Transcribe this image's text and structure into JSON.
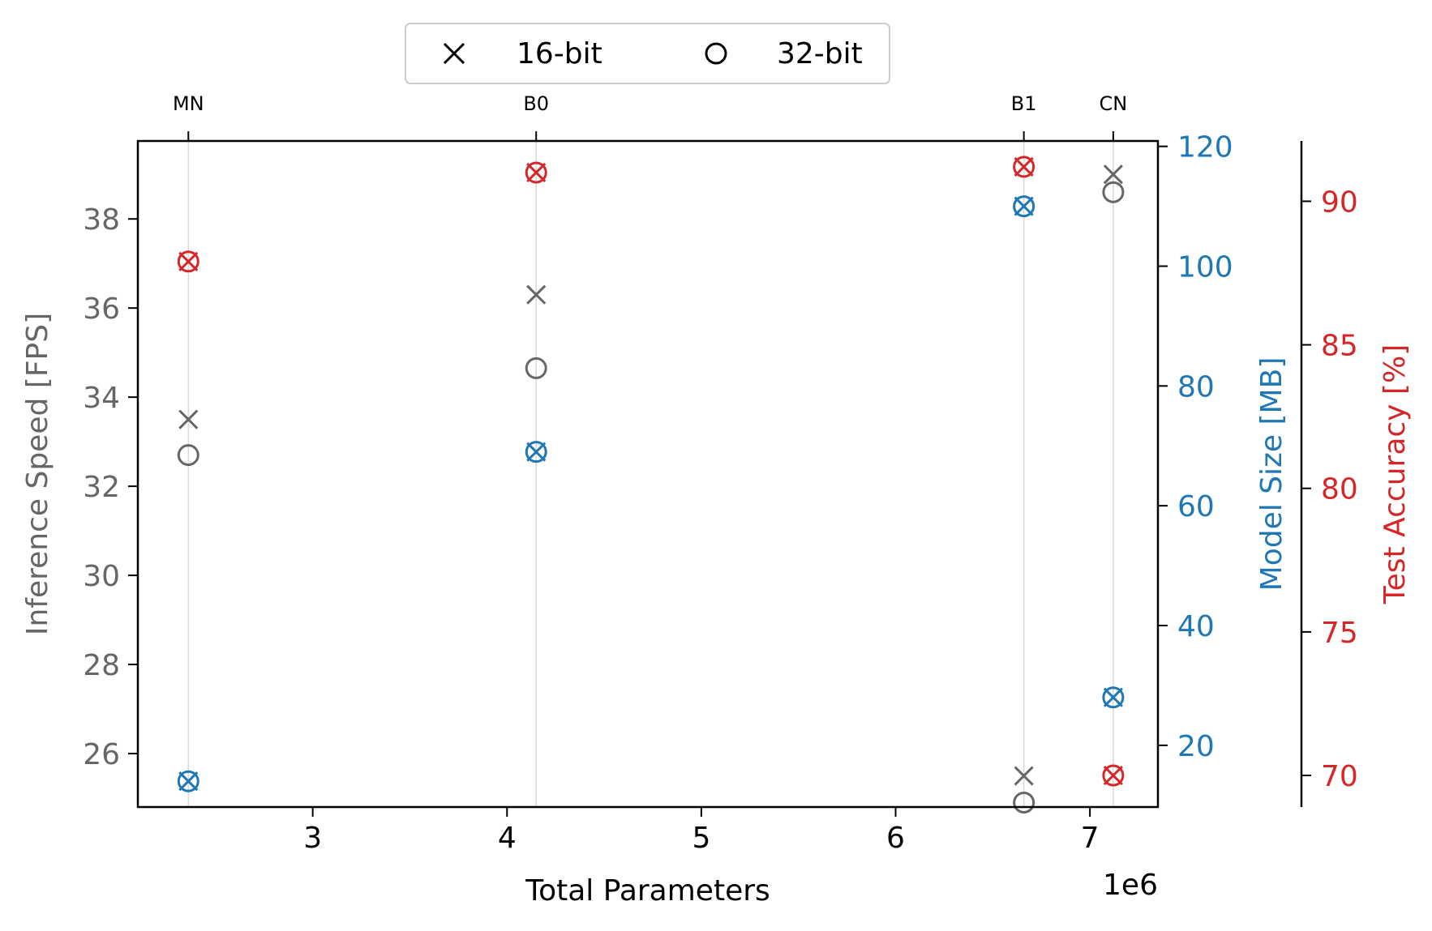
{
  "chart_data": {
    "type": "scatter",
    "x_axis": {
      "label": "Total Parameters",
      "offset_label": "1e6",
      "scale": 1000000,
      "range": [
        2100000,
        7350000
      ],
      "ticks": [
        3000000,
        4000000,
        5000000,
        6000000,
        7000000
      ],
      "tick_labels": [
        "3",
        "4",
        "5",
        "6",
        "7"
      ]
    },
    "top_axis": {
      "ticks": [
        2360000,
        4150000,
        6660000,
        7120000
      ],
      "tick_labels": [
        "MN",
        "B0",
        "B1",
        "CN"
      ]
    },
    "y_axes": [
      {
        "id": "speed",
        "label": "Inference Speed [FPS]",
        "color": "#666666",
        "range": [
          24.8,
          39.75
        ],
        "ticks": [
          26,
          28,
          30,
          32,
          34,
          36,
          38
        ],
        "tick_labels": [
          "26",
          "28",
          "30",
          "32",
          "34",
          "36",
          "38"
        ]
      },
      {
        "id": "size",
        "label": "Model Size [MB]",
        "color": "#1f77b4",
        "range": [
          9.7,
          120.9
        ],
        "ticks": [
          20,
          40,
          60,
          80,
          100,
          120
        ],
        "tick_labels": [
          "20",
          "40",
          "60",
          "80",
          "100",
          "120"
        ]
      },
      {
        "id": "accuracy",
        "label": "Test Accuracy [%]",
        "color": "#d62728",
        "range": [
          68.9,
          92.1
        ],
        "ticks": [
          70,
          75,
          80,
          85,
          90
        ],
        "tick_labels": [
          "70",
          "75",
          "80",
          "85",
          "90"
        ]
      }
    ],
    "legend": {
      "position": "top-center",
      "entries": [
        {
          "label": "16-bit",
          "marker": "x"
        },
        {
          "label": "32-bit",
          "marker": "o"
        }
      ]
    },
    "grid": "vertical lines at top ticks",
    "series": [
      {
        "precision": "16-bit",
        "marker": "x",
        "axis": "speed",
        "x": [
          2360000,
          4150000,
          6660000,
          7120000
        ],
        "y": [
          33.5,
          36.3,
          25.5,
          39.0
        ]
      },
      {
        "precision": "32-bit",
        "marker": "o",
        "axis": "speed",
        "x": [
          2360000,
          4150000,
          6660000,
          7120000
        ],
        "y": [
          32.7,
          34.65,
          24.9,
          38.6
        ]
      },
      {
        "precision": "16-bit",
        "marker": "x",
        "axis": "size",
        "x": [
          2360000,
          4150000,
          6660000,
          7120000
        ],
        "y": [
          14,
          69,
          110,
          28
        ]
      },
      {
        "precision": "32-bit",
        "marker": "o",
        "axis": "size",
        "x": [
          2360000,
          4150000,
          6660000,
          7120000
        ],
        "y": [
          14,
          69,
          110,
          28
        ]
      },
      {
        "precision": "16-bit",
        "marker": "x",
        "axis": "accuracy",
        "x": [
          2360000,
          4150000,
          6660000,
          7120000
        ],
        "y": [
          87.9,
          91.0,
          91.2,
          70.0
        ]
      },
      {
        "precision": "32-bit",
        "marker": "o",
        "axis": "accuracy",
        "x": [
          2360000,
          4150000,
          6660000,
          7120000
        ],
        "y": [
          87.9,
          91.0,
          91.2,
          70.0
        ]
      }
    ]
  }
}
